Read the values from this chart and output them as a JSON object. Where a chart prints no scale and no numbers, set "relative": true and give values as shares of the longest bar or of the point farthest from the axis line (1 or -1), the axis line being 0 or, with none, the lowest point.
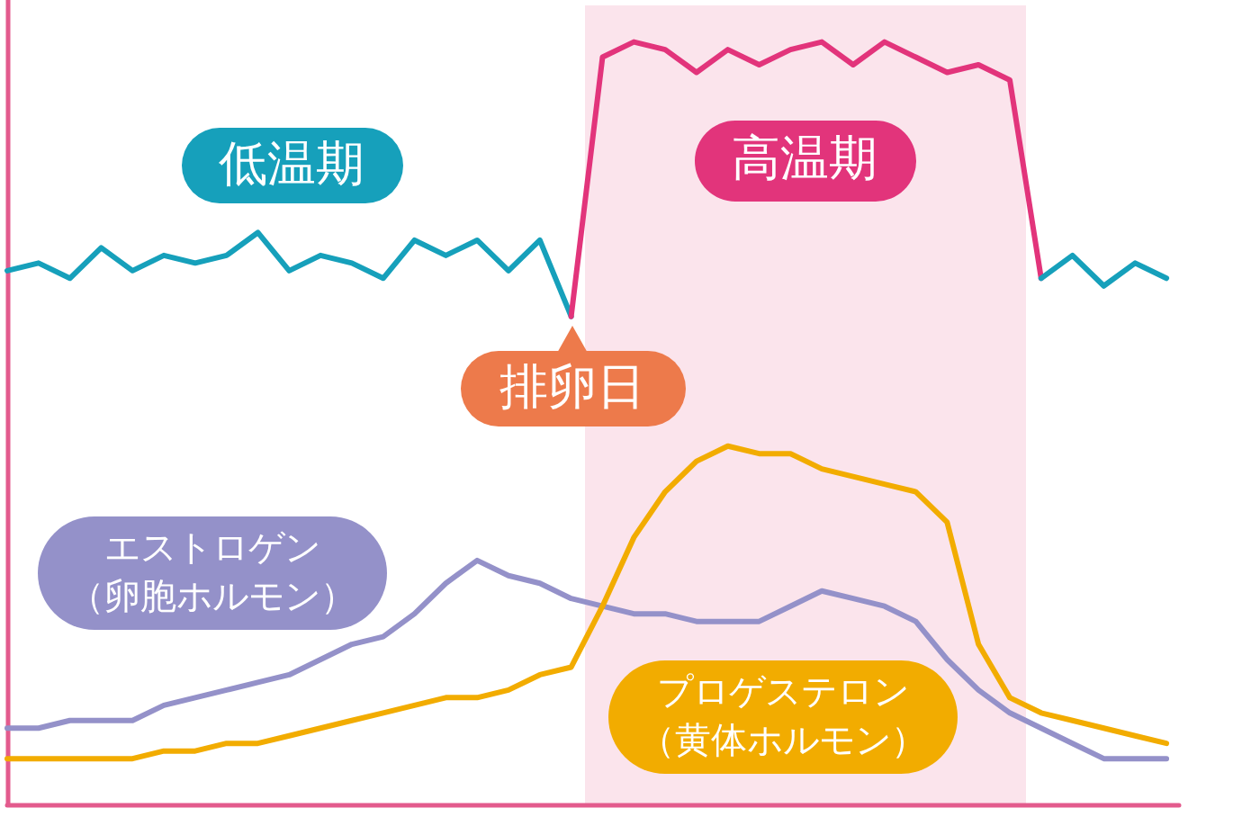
{
  "chart_data": {
    "type": "line",
    "relative": true,
    "tick_labels": false,
    "marker": "none",
    "categories": [
      null,
      null,
      null,
      null,
      null,
      null,
      null,
      null,
      null,
      null,
      null,
      null,
      null,
      null,
      null,
      null,
      null,
      null,
      null,
      null,
      null,
      null,
      null,
      null,
      null,
      null,
      null,
      null,
      null,
      null,
      null,
      null,
      null,
      null,
      null,
      null,
      null,
      null
    ],
    "series": [
      {
        "name": "低温期",
        "color": "#16a0bb",
        "values": [
          0.7,
          0.71,
          0.69,
          0.73,
          0.7,
          0.72,
          0.71,
          0.72,
          0.75,
          0.7,
          0.72,
          0.71,
          0.69,
          0.74,
          0.72,
          0.74,
          0.7,
          0.74,
          0.64,
          null,
          null,
          null,
          null,
          null,
          null,
          null,
          null,
          null,
          null,
          null,
          null,
          null,
          null,
          null,
          null,
          null,
          null,
          null
        ]
      },
      {
        "name": "高温期",
        "color": "#e2347b",
        "values": [
          null,
          null,
          null,
          null,
          null,
          null,
          null,
          null,
          null,
          null,
          null,
          null,
          null,
          null,
          null,
          null,
          null,
          null,
          0.64,
          0.98,
          1.0,
          0.99,
          0.96,
          0.99,
          0.97,
          0.99,
          1.0,
          0.97,
          1.0,
          0.98,
          0.96,
          0.97,
          0.95,
          0.69,
          null,
          null,
          null,
          null
        ]
      },
      {
        "color": "#16a0bb",
        "values": [
          null,
          null,
          null,
          null,
          null,
          null,
          null,
          null,
          null,
          null,
          null,
          null,
          null,
          null,
          null,
          null,
          null,
          null,
          null,
          null,
          null,
          null,
          null,
          null,
          null,
          null,
          null,
          null,
          null,
          null,
          null,
          null,
          null,
          0.69,
          0.72,
          0.68,
          0.71,
          0.69
        ]
      },
      {
        "name": "エストロゲン（卵胞ホルモン）",
        "color": "#9491c9",
        "values": [
          0.1,
          0.1,
          0.11,
          0.11,
          0.11,
          0.13,
          0.14,
          0.15,
          0.16,
          0.17,
          0.19,
          0.21,
          0.22,
          0.25,
          0.29,
          0.32,
          0.3,
          0.29,
          0.27,
          0.26,
          0.25,
          0.25,
          0.24,
          0.24,
          0.24,
          0.26,
          0.28,
          0.27,
          0.26,
          0.24,
          0.19,
          0.15,
          0.12,
          0.1,
          0.08,
          0.06,
          0.06,
          0.06
        ]
      },
      {
        "name": "プロゲステロン（黄体ホルモン）",
        "color": "#f2ac00",
        "values": [
          0.06,
          0.06,
          0.06,
          0.06,
          0.06,
          0.07,
          0.07,
          0.08,
          0.08,
          0.09,
          0.1,
          0.11,
          0.12,
          0.13,
          0.14,
          0.14,
          0.15,
          0.17,
          0.18,
          0.26,
          0.35,
          0.41,
          0.45,
          0.47,
          0.46,
          0.46,
          0.44,
          0.43,
          0.42,
          0.41,
          0.37,
          0.21,
          0.14,
          0.12,
          0.11,
          0.1,
          0.09,
          0.08
        ]
      }
    ],
    "annotations": [
      "排卵日"
    ]
  }
}
